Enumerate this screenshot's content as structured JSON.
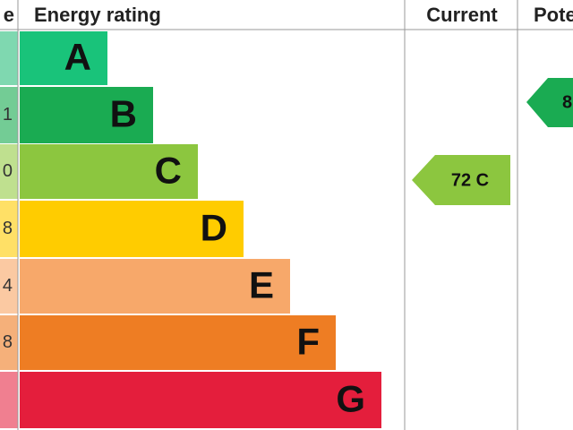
{
  "header": {
    "score": "e",
    "rating": "Energy rating",
    "current": "Current",
    "potential": "Pote"
  },
  "rows": [
    {
      "letter": "A"
    },
    {
      "letter": "B",
      "score": "1"
    },
    {
      "letter": "C",
      "score": "0"
    },
    {
      "letter": "D",
      "score": "8"
    },
    {
      "letter": "E",
      "score": "4"
    },
    {
      "letter": "F",
      "score": "8"
    },
    {
      "letter": "G"
    }
  ],
  "current": "72 C",
  "potential": "8"
}
